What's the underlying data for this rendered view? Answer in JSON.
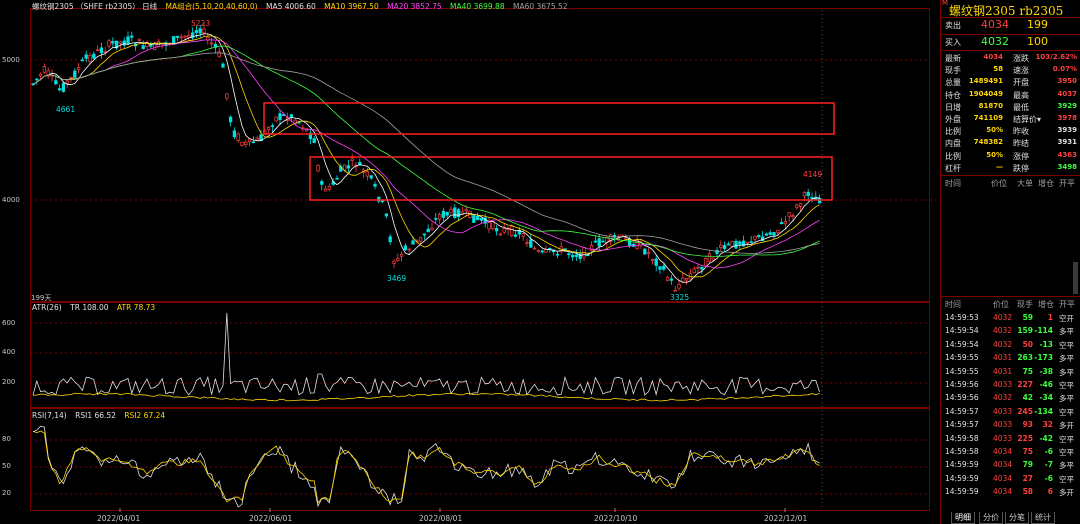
{
  "main_legend": {
    "symbol": "螺纹钢2305 （SHFE rb2305）  日线",
    "ma_group": "MA组合(5,10,20,40,60,0)",
    "ma5": "MA5 4006.60",
    "ma10": "MA10 3967.50",
    "ma20": "MA20 3852.75",
    "ma40": "MA40 3699.88",
    "ma60": "MA60 3675.52"
  },
  "main_axis": {
    "y5000": "5000",
    "y4000": "4000"
  },
  "annotations": {
    "high1": "5223",
    "low1": "4661",
    "low2": "3469",
    "low3": "3325",
    "high2": "4149",
    "days": "199天"
  },
  "atr_legend": {
    "name": "ATR(26)",
    "tr": "TR 108.00",
    "atr": "ATR 78.73"
  },
  "atr_axis": {
    "y600": "600",
    "y400": "400",
    "y200": "200"
  },
  "rsi_legend": {
    "name": "RSI(7,14)",
    "rsi1": "RSI1 66.52",
    "rsi2": "RSI2 67.24"
  },
  "rsi_axis": {
    "y80": "80",
    "y50": "50",
    "y20": "20"
  },
  "x_axis": [
    "2022/04/01",
    "2022/06/01",
    "2022/08/01",
    "2022/10/10",
    "2022/12/01"
  ],
  "quote": {
    "title": "螺纹钢2305  rb2305",
    "sell_label": "卖出",
    "sell_price": "4034",
    "sell_vol": "199",
    "buy_label": "买入",
    "buy_price": "4032",
    "buy_vol": "100",
    "rows": [
      {
        "l1": "最新",
        "v1": "4034",
        "c1": "red",
        "l2": "涨跌",
        "v2": "103/2.62%",
        "c2": "red"
      },
      {
        "l1": "现手",
        "v1": "58",
        "c1": "yellow",
        "l2": "速涨",
        "v2": "0.07%",
        "c2": "red"
      },
      {
        "l1": "总量",
        "v1": "1489491",
        "c1": "yellow",
        "l2": "开盘",
        "v2": "3950",
        "c2": "red"
      },
      {
        "l1": "持仓",
        "v1": "1904049",
        "c1": "yellow",
        "l2": "最高",
        "v2": "4037",
        "c2": "red"
      },
      {
        "l1": "日增",
        "v1": "81870",
        "c1": "yellow",
        "l2": "最低",
        "v2": "3929",
        "c2": "green"
      },
      {
        "l1": "外盘",
        "v1": "741109",
        "c1": "yellow",
        "l2": "结算价▾",
        "v2": "3978",
        "c2": "red"
      },
      {
        "l1": "比例",
        "v1": "50%",
        "c1": "yellow",
        "l2": "昨收",
        "v2": "3939",
        "c2": "white"
      },
      {
        "l1": "内盘",
        "v1": "748382",
        "c1": "yellow",
        "l2": "昨结",
        "v2": "3931",
        "c2": "white"
      },
      {
        "l1": "比例",
        "v1": "50%",
        "c1": "yellow",
        "l2": "涨停",
        "v2": "4363",
        "c2": "red"
      },
      {
        "l1": "杠杆",
        "v1": "—",
        "c1": "yellow",
        "l2": "跌停",
        "v2": "3498",
        "c2": "green"
      }
    ],
    "header1": {
      "time": "时间",
      "price": "价位",
      "vol": "大单",
      "oi": "增仓",
      "type": "开平"
    },
    "header2": {
      "time": "时间",
      "price": "价位",
      "vol": "现手",
      "oi": "增仓",
      "type": "开平"
    },
    "ticks": [
      {
        "t": "14:59:53",
        "p": "4032",
        "v": "59",
        "d": "1",
        "k": "空开",
        "vc": "green"
      },
      {
        "t": "14:59:54",
        "p": "4032",
        "v": "159",
        "d": "-114",
        "k": "多平",
        "vc": "green"
      },
      {
        "t": "14:59:54",
        "p": "4032",
        "v": "50",
        "d": "-13",
        "k": "空平",
        "vc": "red"
      },
      {
        "t": "14:59:55",
        "p": "4031",
        "v": "263",
        "d": "-173",
        "k": "多平",
        "vc": "green"
      },
      {
        "t": "14:59:55",
        "p": "4031",
        "v": "75",
        "d": "-38",
        "k": "多平",
        "vc": "green"
      },
      {
        "t": "14:59:56",
        "p": "4033",
        "v": "227",
        "d": "-46",
        "k": "空平",
        "vc": "red"
      },
      {
        "t": "14:59:56",
        "p": "4032",
        "v": "42",
        "d": "-34",
        "k": "多平",
        "vc": "green"
      },
      {
        "t": "14:59:57",
        "p": "4033",
        "v": "245",
        "d": "-134",
        "k": "空平",
        "vc": "red"
      },
      {
        "t": "14:59:57",
        "p": "4033",
        "v": "93",
        "d": "32",
        "k": "多开",
        "vc": "red"
      },
      {
        "t": "14:59:58",
        "p": "4033",
        "v": "225",
        "d": "-42",
        "k": "空平",
        "vc": "red"
      },
      {
        "t": "14:59:58",
        "p": "4034",
        "v": "75",
        "d": "-6",
        "k": "空平",
        "vc": "red"
      },
      {
        "t": "14:59:59",
        "p": "4034",
        "v": "79",
        "d": "-7",
        "k": "多平",
        "vc": "green"
      },
      {
        "t": "14:59:59",
        "p": "4034",
        "v": "27",
        "d": "-6",
        "k": "空平",
        "vc": "red"
      },
      {
        "t": "14:59:59",
        "p": "4034",
        "v": "58",
        "d": "6",
        "k": "多开",
        "vc": "red"
      }
    ],
    "tabs": [
      "明细",
      "分价",
      "分笔",
      "统计"
    ]
  },
  "colors": {
    "up": "#ff4040",
    "down": "#00e0e0",
    "ma5": "#ffffff",
    "ma10": "#ffd800",
    "ma20": "#ff40ff",
    "ma40": "#40ff40",
    "ma60": "#a0a0a0",
    "grid": "#7a0000"
  }
}
